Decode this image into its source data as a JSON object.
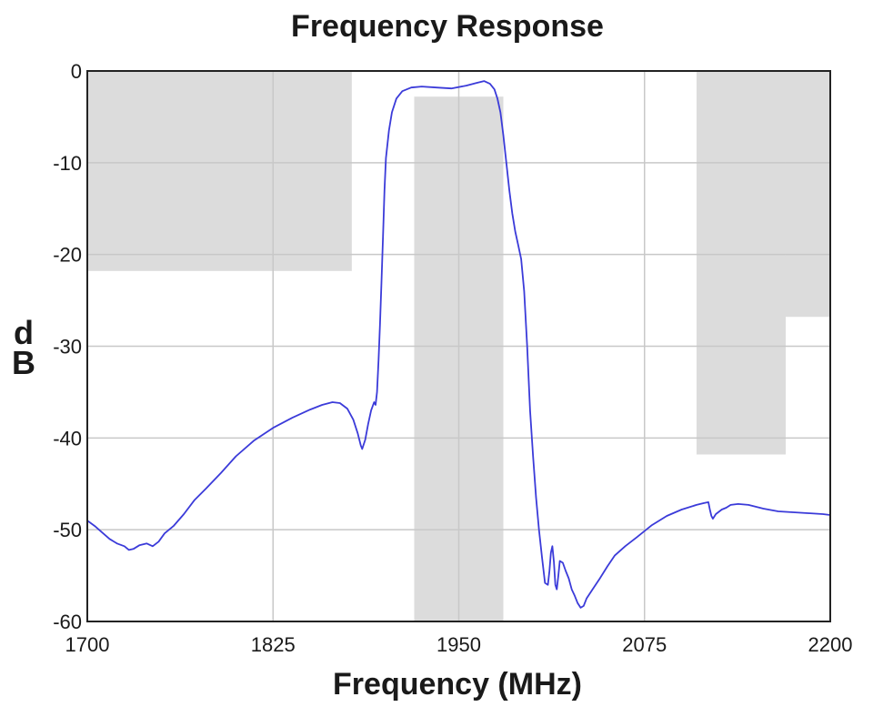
{
  "chart_data": {
    "type": "line",
    "title": "Frequency Response",
    "xlabel": "Frequency (MHz)",
    "ylabel_top": "d",
    "ylabel_bottom": "B",
    "xlim": [
      1700,
      2200
    ],
    "ylim": [
      -60,
      0
    ],
    "xticks": [
      1700,
      1825,
      1950,
      2075,
      2200
    ],
    "yticks": [
      0,
      -10,
      -20,
      -30,
      -40,
      -50,
      -60
    ],
    "grid": true,
    "colors": {
      "line": "#3b3bd9",
      "mask": "#dcdcdc",
      "grid": "#c8c8c8",
      "frame": "#222222"
    },
    "mask_regions": [
      {
        "x": [
          1700,
          1878
        ],
        "y": [
          -21.8,
          0
        ]
      },
      {
        "x": [
          1920,
          1980
        ],
        "y": [
          -60,
          -2.8
        ]
      },
      {
        "x": [
          2110,
          2170
        ],
        "y": [
          -41.8,
          0
        ]
      },
      {
        "x": [
          2170,
          2200
        ],
        "y": [
          -26.8,
          0
        ]
      }
    ],
    "series": [
      {
        "points": [
          [
            1700,
            -49.0
          ],
          [
            1705,
            -49.6
          ],
          [
            1710,
            -50.3
          ],
          [
            1715,
            -51.0
          ],
          [
            1720,
            -51.5
          ],
          [
            1725,
            -51.8
          ],
          [
            1728,
            -52.2
          ],
          [
            1731,
            -52.1
          ],
          [
            1735,
            -51.7
          ],
          [
            1740,
            -51.5
          ],
          [
            1744,
            -51.8
          ],
          [
            1748,
            -51.3
          ],
          [
            1752,
            -50.4
          ],
          [
            1758,
            -49.6
          ],
          [
            1765,
            -48.3
          ],
          [
            1772,
            -46.8
          ],
          [
            1780,
            -45.5
          ],
          [
            1790,
            -43.8
          ],
          [
            1800,
            -42.0
          ],
          [
            1812,
            -40.3
          ],
          [
            1825,
            -38.9
          ],
          [
            1838,
            -37.8
          ],
          [
            1850,
            -36.9
          ],
          [
            1858,
            -36.4
          ],
          [
            1865,
            -36.1
          ],
          [
            1870,
            -36.2
          ],
          [
            1875,
            -36.8
          ],
          [
            1879,
            -38.0
          ],
          [
            1882,
            -39.5
          ],
          [
            1884,
            -40.8
          ],
          [
            1885,
            -41.2
          ],
          [
            1887,
            -40.2
          ],
          [
            1889,
            -38.5
          ],
          [
            1891,
            -37.0
          ],
          [
            1893,
            -36.1
          ],
          [
            1894,
            -36.4
          ],
          [
            1895,
            -35.0
          ],
          [
            1896,
            -31.5
          ],
          [
            1897,
            -27.5
          ],
          [
            1898,
            -23.0
          ],
          [
            1899,
            -18.0
          ],
          [
            1900,
            -13.0
          ],
          [
            1901,
            -9.5
          ],
          [
            1903,
            -6.5
          ],
          [
            1905,
            -4.5
          ],
          [
            1908,
            -3.0
          ],
          [
            1912,
            -2.2
          ],
          [
            1918,
            -1.8
          ],
          [
            1925,
            -1.7
          ],
          [
            1935,
            -1.8
          ],
          [
            1945,
            -1.9
          ],
          [
            1955,
            -1.6
          ],
          [
            1962,
            -1.3
          ],
          [
            1967,
            -1.1
          ],
          [
            1971,
            -1.4
          ],
          [
            1974,
            -2.0
          ],
          [
            1976,
            -3.0
          ],
          [
            1978,
            -4.5
          ],
          [
            1980,
            -7.0
          ],
          [
            1982,
            -10.0
          ],
          [
            1984,
            -13.0
          ],
          [
            1986,
            -15.5
          ],
          [
            1988,
            -17.5
          ],
          [
            1990,
            -19.0
          ],
          [
            1992,
            -20.5
          ],
          [
            1994,
            -24.0
          ],
          [
            1996,
            -30.0
          ],
          [
            1998,
            -37.0
          ],
          [
            2000,
            -42.0
          ],
          [
            2002,
            -46.5
          ],
          [
            2004,
            -50.0
          ],
          [
            2006,
            -53.0
          ],
          [
            2008,
            -55.8
          ],
          [
            2010,
            -56.0
          ],
          [
            2011,
            -54.5
          ],
          [
            2012,
            -52.5
          ],
          [
            2013,
            -51.8
          ],
          [
            2014,
            -53.5
          ],
          [
            2015,
            -56.0
          ],
          [
            2016,
            -56.5
          ],
          [
            2017,
            -55.0
          ],
          [
            2018,
            -53.4
          ],
          [
            2020,
            -53.6
          ],
          [
            2022,
            -54.5
          ],
          [
            2024,
            -55.3
          ],
          [
            2026,
            -56.5
          ],
          [
            2028,
            -57.2
          ],
          [
            2030,
            -58.0
          ],
          [
            2032,
            -58.5
          ],
          [
            2034,
            -58.3
          ],
          [
            2036,
            -57.5
          ],
          [
            2040,
            -56.5
          ],
          [
            2045,
            -55.3
          ],
          [
            2050,
            -54.0
          ],
          [
            2055,
            -52.8
          ],
          [
            2062,
            -51.8
          ],
          [
            2070,
            -50.8
          ],
          [
            2080,
            -49.5
          ],
          [
            2090,
            -48.5
          ],
          [
            2100,
            -47.8
          ],
          [
            2110,
            -47.3
          ],
          [
            2115,
            -47.1
          ],
          [
            2118,
            -47.0
          ],
          [
            2119,
            -47.8
          ],
          [
            2120,
            -48.5
          ],
          [
            2121,
            -48.8
          ],
          [
            2123,
            -48.3
          ],
          [
            2127,
            -47.8
          ],
          [
            2130,
            -47.6
          ],
          [
            2133,
            -47.3
          ],
          [
            2138,
            -47.2
          ],
          [
            2145,
            -47.3
          ],
          [
            2155,
            -47.7
          ],
          [
            2165,
            -48.0
          ],
          [
            2175,
            -48.1
          ],
          [
            2185,
            -48.2
          ],
          [
            2195,
            -48.3
          ],
          [
            2200,
            -48.4
          ]
        ]
      }
    ]
  }
}
